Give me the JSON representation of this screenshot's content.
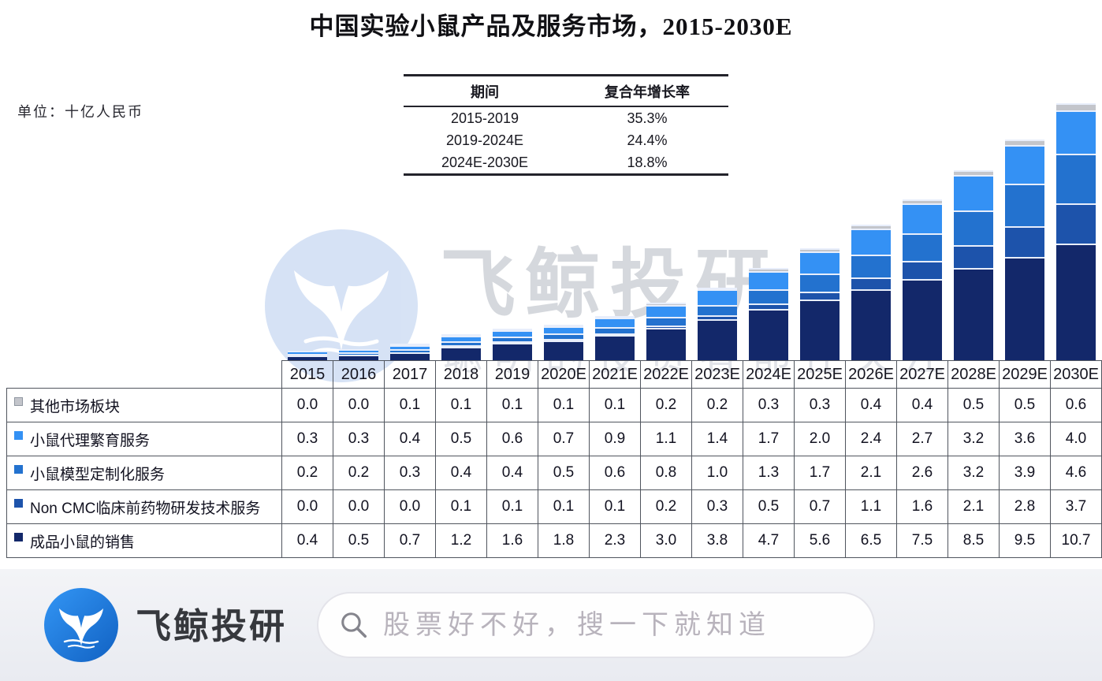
{
  "unit_label": "单位：十亿人民币",
  "cagr_table": {
    "headers": [
      "期间",
      "复合年增长率"
    ],
    "rows": [
      [
        "2015-2019",
        "35.3%"
      ],
      [
        "2019-2024E",
        "24.4%"
      ],
      [
        "2024E-2030E",
        "18.8%"
      ]
    ]
  },
  "chart_data": {
    "type": "bar",
    "stacked": true,
    "title": "中国实验小鼠产品及服务市场，2015-2030E",
    "unit": "十亿人民币",
    "ylim": [
      0,
      24
    ],
    "grid": false,
    "legend_position": "left column of data table",
    "stack_note": "series listed in table order (top row first); stacking bottom-to-top is the reverse of this list",
    "categories": [
      "2015",
      "2016",
      "2017",
      "2018",
      "2019",
      "2020E",
      "2021E",
      "2022E",
      "2023E",
      "2024E",
      "2025E",
      "2026E",
      "2027E",
      "2028E",
      "2029E",
      "2030E"
    ],
    "series": [
      {
        "name": "其他市场板块",
        "color": "#c3c5cb",
        "marker_border": "#8f96a0",
        "values": [
          0.0,
          0.0,
          0.1,
          0.1,
          0.1,
          0.1,
          0.1,
          0.2,
          0.2,
          0.3,
          0.3,
          0.4,
          0.4,
          0.5,
          0.5,
          0.6
        ]
      },
      {
        "name": "小鼠代理繁育服务",
        "color": "#3491f4",
        "values": [
          0.3,
          0.3,
          0.4,
          0.5,
          0.6,
          0.7,
          0.9,
          1.1,
          1.4,
          1.7,
          2.0,
          2.4,
          2.7,
          3.2,
          3.6,
          4.0
        ]
      },
      {
        "name": "小鼠模型定制化服务",
        "color": "#2372cf",
        "values": [
          0.2,
          0.2,
          0.3,
          0.4,
          0.4,
          0.5,
          0.6,
          0.8,
          1.0,
          1.3,
          1.7,
          2.1,
          2.6,
          3.2,
          3.9,
          4.6
        ]
      },
      {
        "name": "Non CMC临床前药物研发技术服务",
        "color": "#1d53ab",
        "values": [
          0.0,
          0.0,
          0.0,
          0.1,
          0.1,
          0.1,
          0.1,
          0.2,
          0.3,
          0.5,
          0.7,
          1.1,
          1.6,
          2.1,
          2.8,
          3.7
        ]
      },
      {
        "name": "成品小鼠的销售",
        "color": "#13286a",
        "values": [
          0.4,
          0.5,
          0.7,
          1.2,
          1.6,
          1.8,
          2.3,
          3.0,
          3.8,
          4.7,
          5.6,
          6.5,
          7.5,
          8.5,
          9.5,
          10.7
        ]
      }
    ]
  },
  "watermark": {
    "brand": "飞鲸投研",
    "slogan": "聪明的投资者都在关注"
  },
  "footer": {
    "brand": "飞鲸投研",
    "search_placeholder": "股票好不好，搜一下就知道"
  },
  "colors": {
    "accent_blue": "#1677d9",
    "footer_bg": "#edeff4",
    "table_border": "#50555e"
  }
}
